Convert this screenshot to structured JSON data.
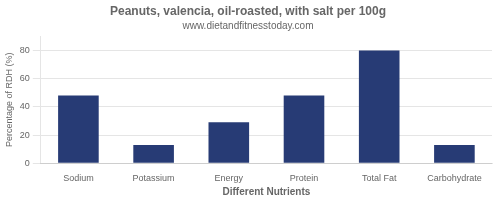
{
  "chart_data": {
    "type": "bar",
    "title": "Peanuts, valencia, oil-roasted, with salt per 100g",
    "subtitle": "www.dietandfitnesstoday.com",
    "categories": [
      "Sodium",
      "Potassium",
      "Energy",
      "Protein",
      "Total Fat",
      "Carbohydrate"
    ],
    "values": [
      48,
      13,
      29,
      48,
      80,
      13
    ],
    "color": "#273b75",
    "xlabel": "Different Nutrients",
    "ylabel": "Percentage of RDH (%)",
    "ylim": [
      0,
      90
    ],
    "yticks": [
      0,
      20,
      40,
      60,
      80
    ],
    "grid": true
  }
}
